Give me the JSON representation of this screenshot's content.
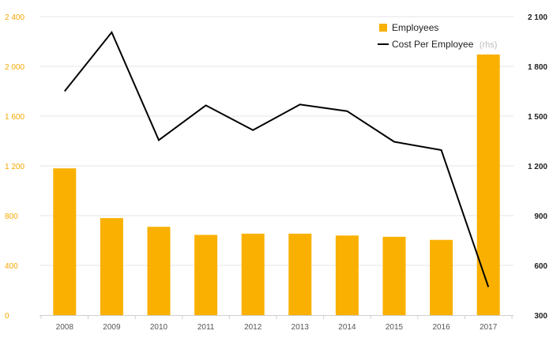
{
  "chart_data": {
    "type": "bar",
    "categories": [
      "2008",
      "2009",
      "2010",
      "2011",
      "2012",
      "2013",
      "2014",
      "2015",
      "2016",
      "2017"
    ],
    "series": [
      {
        "name": "Employees",
        "type": "bar",
        "axis": "left",
        "color": "#f9b000",
        "values": [
          1180,
          780,
          710,
          645,
          655,
          655,
          640,
          630,
          605,
          2095
        ]
      },
      {
        "name": "Cost Per Employee",
        "name_suffix": "(rhs)",
        "type": "line",
        "axis": "right",
        "color": "#000000",
        "values": [
          1650,
          2005,
          1355,
          1565,
          1415,
          1570,
          1530,
          1345,
          1295,
          470
        ]
      }
    ],
    "left_axis": {
      "ylim": [
        0,
        2400
      ],
      "ticks": [
        "0",
        "400",
        "800",
        "1 200",
        "1 600",
        "2 000",
        "2 400"
      ],
      "tick_values": [
        0,
        400,
        800,
        1200,
        1600,
        2000,
        2400
      ],
      "color": "#f5a800"
    },
    "right_axis": {
      "ylim": [
        300,
        2100
      ],
      "ticks": [
        "300",
        "600",
        "900",
        "1 200",
        "1 500",
        "1 800",
        "2 100"
      ],
      "tick_values": [
        300,
        600,
        900,
        1200,
        1500,
        1800,
        2100
      ],
      "color": "#222222"
    },
    "grid": true,
    "legend_position": "top-right"
  }
}
